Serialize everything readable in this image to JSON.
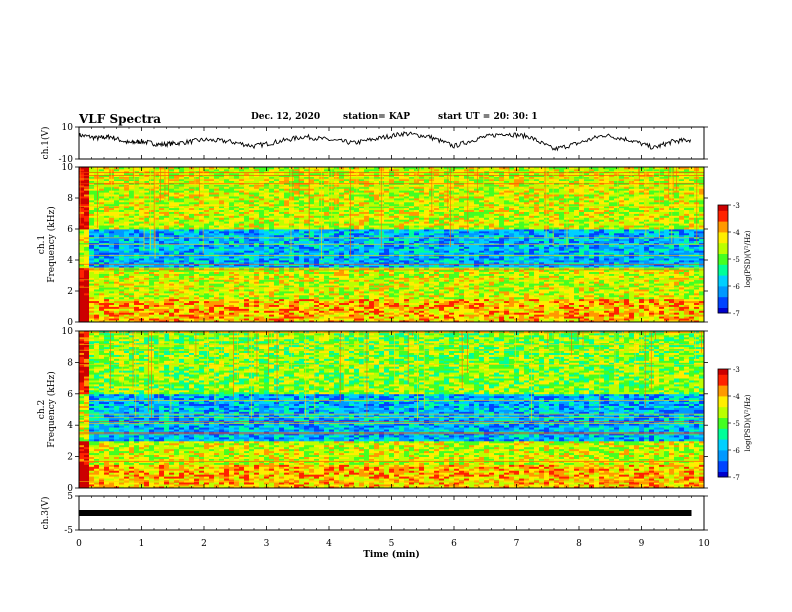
{
  "header": {
    "title": "VLF Spectra",
    "date": "Dec. 12, 2020",
    "station": "station= KAP",
    "start": "start UT = 20: 30: 1"
  },
  "colors": {
    "colormap": [
      "#0000cc",
      "#0044ff",
      "#0099ff",
      "#00d0ff",
      "#00ff99",
      "#44ff22",
      "#bbff00",
      "#ffee00",
      "#ff9900",
      "#ff2200",
      "#cc0000"
    ],
    "trace": "#000000",
    "axis": "#000000"
  },
  "chart_data": [
    {
      "type": "line",
      "name": "ch1-waveform",
      "ylabel": "ch.1(V)",
      "ylim": [
        -10,
        10
      ],
      "yticks": [
        "10",
        "-10"
      ],
      "x": [
        0,
        0.3,
        0.5,
        0.8,
        1.0,
        1.3,
        1.6,
        2.0,
        2.4,
        2.8,
        3.2,
        3.6,
        4.0,
        4.4,
        4.8,
        5.2,
        5.6,
        6.0,
        6.4,
        6.8,
        7.2,
        7.6,
        8.0,
        8.4,
        8.8,
        9.2,
        9.5,
        9.8
      ],
      "y": [
        5,
        3,
        4,
        0,
        1,
        -1,
        0,
        2,
        1,
        -2,
        1,
        4,
        2,
        0,
        3,
        6,
        4,
        -2,
        3,
        6,
        4,
        -4,
        0,
        5,
        2,
        -3,
        1,
        2
      ]
    },
    {
      "type": "heatmap",
      "name": "ch1-spectrogram",
      "ylabel": "ch.1 Frequency (kHz)",
      "ylim": [
        0,
        10
      ],
      "yticks": [
        "0",
        "2",
        "4",
        "6",
        "8",
        "10"
      ],
      "colorbar": {
        "label": "log(PSD)(V²/Hz)",
        "range": [
          -7,
          -3
        ],
        "ticks": [
          "-3",
          "-4",
          "-5",
          "-6",
          "-7"
        ]
      },
      "description_levels": {
        "0-1.5 kHz": -4.0,
        "1.5-3.5 kHz": -4.5,
        "3.5-6 kHz": -6.0,
        "6-10 kHz": -4.5
      }
    },
    {
      "type": "heatmap",
      "name": "ch2-spectrogram",
      "ylabel": "ch.2 Frequency (kHz)",
      "ylim": [
        0,
        10
      ],
      "yticks": [
        "0",
        "2",
        "4",
        "6",
        "8",
        "10"
      ],
      "colorbar": {
        "label": "log(PSD)(V²/Hz)",
        "range": [
          -7,
          -3
        ],
        "ticks": [
          "-3",
          "-4",
          "-5",
          "-6",
          "-7"
        ]
      },
      "description_levels": {
        "0-1.5 kHz": -4.0,
        "1.5-3 kHz": -4.5,
        "3-6 kHz": -6.0,
        "6-10 kHz": -4.8
      }
    },
    {
      "type": "line",
      "name": "ch3-waveform",
      "ylabel": "ch.3(V)",
      "ylim": [
        -5,
        5
      ],
      "yticks": [
        "5",
        "-5"
      ],
      "x": [
        0,
        9.8
      ],
      "y": [
        0,
        0
      ]
    }
  ],
  "xaxis": {
    "label": "Time (min)",
    "range": [
      0,
      10
    ],
    "ticks": [
      "0",
      "1",
      "2",
      "3",
      "4",
      "5",
      "6",
      "7",
      "8",
      "9",
      "10"
    ]
  }
}
